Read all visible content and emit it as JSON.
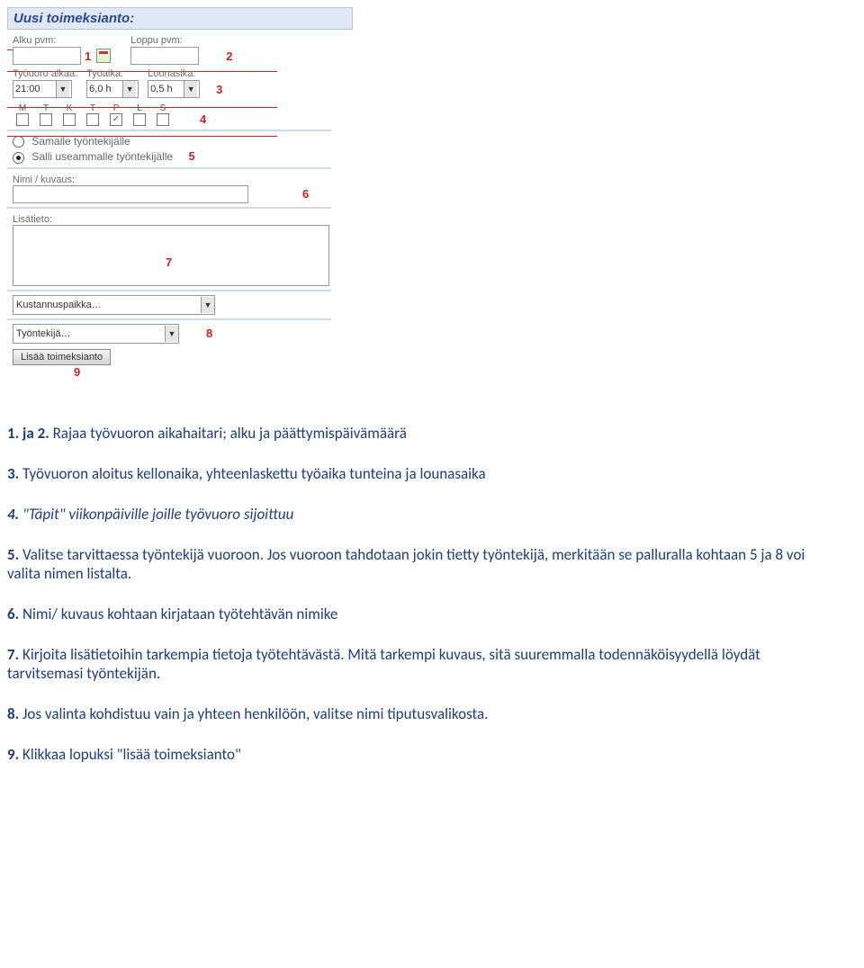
{
  "title": "Uusi toimeksianto:",
  "dates": {
    "start_label": "Alku pvm:",
    "end_label": "Loppu pvm:",
    "annot1": "1",
    "annot2": "2"
  },
  "shift": {
    "start_label": "Työuoro alkaa:",
    "work_label": "Työaika:",
    "lunch_label": "Lounasika:",
    "start_val": "21:00",
    "work_val": "6,0 h",
    "lunch_val": "0,5 h",
    "annot3": "3"
  },
  "days": {
    "labels": [
      "M",
      "T",
      "K",
      "T",
      "P",
      "L",
      "S"
    ],
    "checked": [
      false,
      false,
      false,
      false,
      true,
      false,
      false
    ],
    "annot4": "4"
  },
  "assign": {
    "opt1": "Samalle työntekijälle",
    "opt2": "Salli useammalle työntekijälle",
    "selected": 2,
    "annot5": "5"
  },
  "name": {
    "label": "Nimi / kuvaus:",
    "annot6": "6"
  },
  "extra": {
    "label": "Lisätieto:",
    "annot7": "7"
  },
  "selects": {
    "cost": "Kustannuspaikka…",
    "worker": "Työntekijä…",
    "annot8": "8"
  },
  "submit": {
    "label": "Lisää toimeksianto",
    "annot9": "9"
  },
  "annot_color": "#cc2222",
  "instructions": {
    "items": [
      {
        "n": "1. ja 2.",
        "text": " Rajaa työvuoron aikahaitari; alku ja päättymispäivämäärä"
      },
      {
        "n": "3.",
        "text": " Työvuoron aloitus kellonaika, yhteenlaskettu työaika tunteina ja lounasaika"
      },
      {
        "n": "4.",
        "text": " \"Täpit\" viikonpäiville joille työvuoro sijoittuu",
        "ital": true
      },
      {
        "n": "5.",
        "text": " Valitse tarvittaessa työntekijä vuoroon. Jos vuoroon tahdotaan jokin tietty työntekijä, merkitään se palluralla kohtaan 5 ja 8 voi valita nimen listalta."
      },
      {
        "n": "6.",
        "text": " Nimi/ kuvaus kohtaan kirjataan työtehtävän nimike"
      },
      {
        "n": "7.",
        "text": " Kirjoita lisätietoihin tarkempia tietoja työtehtävästä. Mitä tarkempi kuvaus, sitä suuremmalla todennäköisyydellä löydät tarvitsemasi työntekijän."
      },
      {
        "n": "8.",
        "text": " Jos valinta kohdistuu vain ja yhteen henkilöön, valitse nimi tiputusvalikosta."
      },
      {
        "n": "9.",
        "text": " Klikkaa lopuksi \"lisää toimeksianto\""
      }
    ]
  }
}
